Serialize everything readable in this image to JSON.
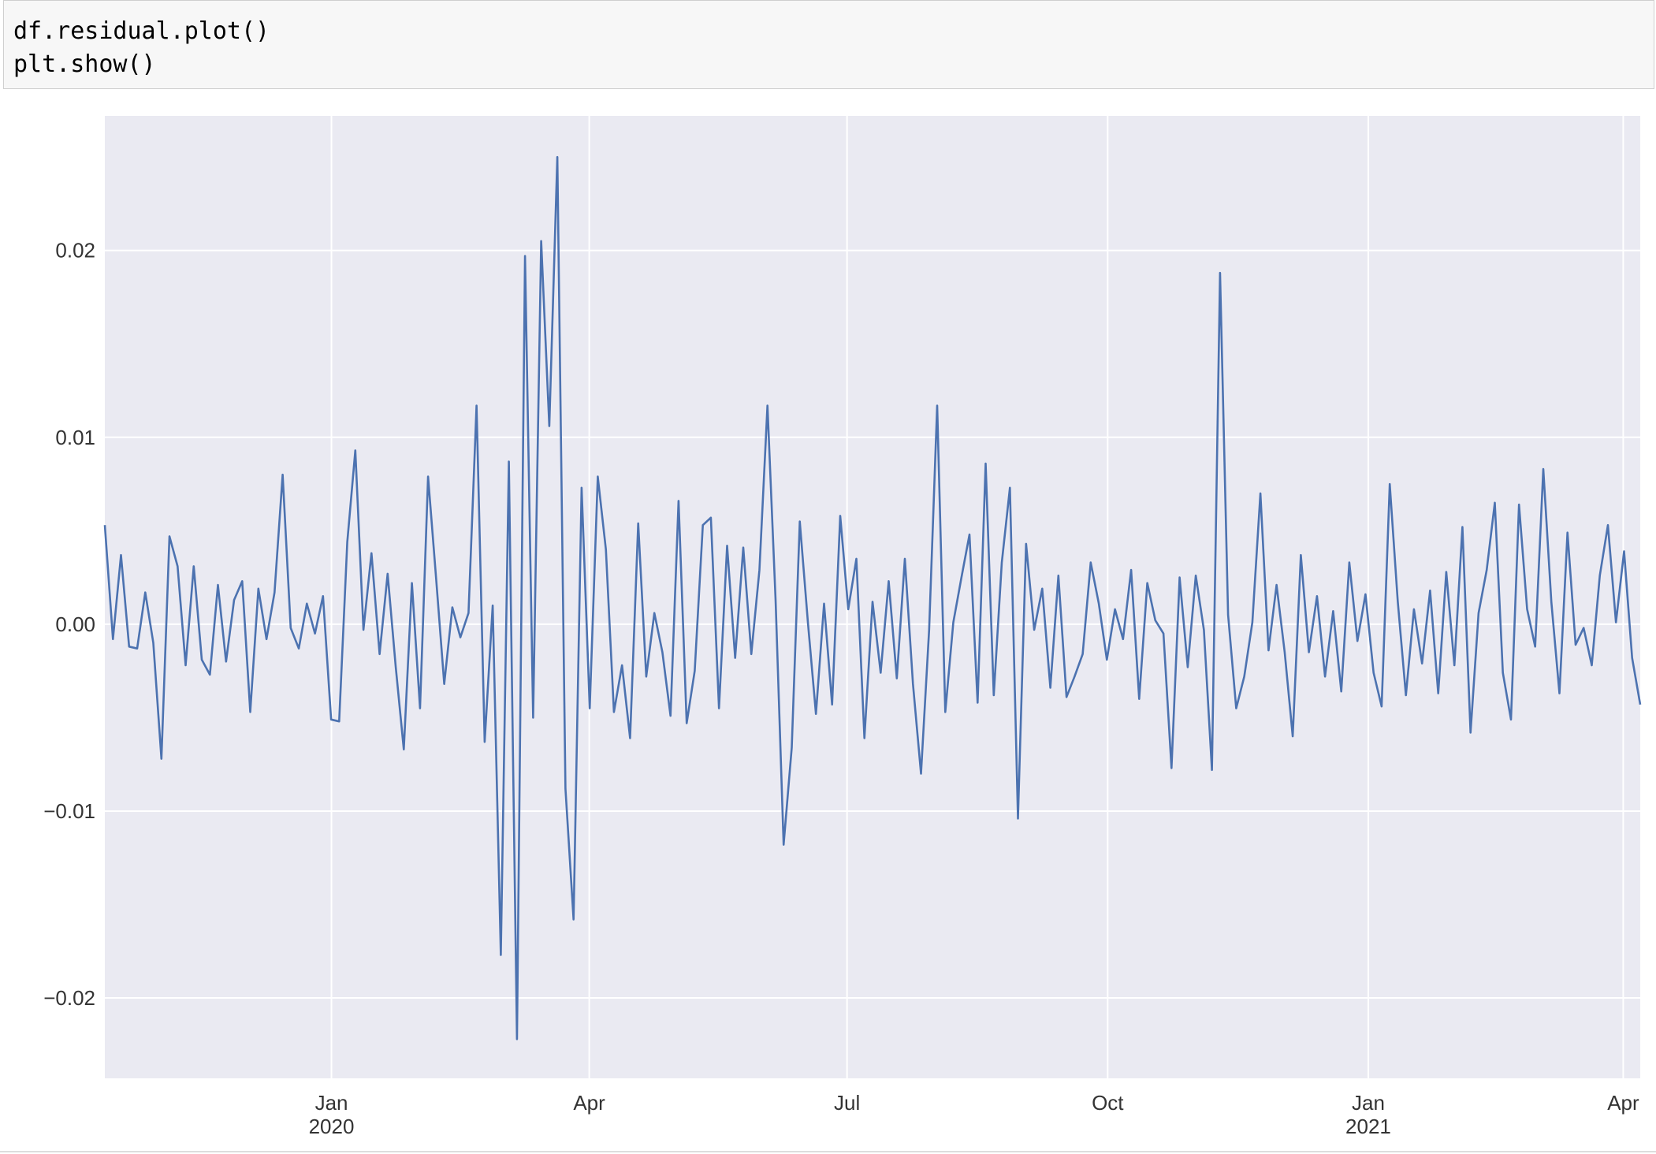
{
  "code": [
    "df.residual.plot()",
    "plt.show()"
  ],
  "chart_data": {
    "type": "line",
    "color": "#4c72b0",
    "grid": true,
    "xlim": [
      "2019-10-13",
      "2021-04-07"
    ],
    "xticks": [
      {
        "value": "2020-01-01",
        "label": "Jan\n2020"
      },
      {
        "value": "2020-04-01",
        "label": "Apr"
      },
      {
        "value": "2020-07-01",
        "label": "Jul"
      },
      {
        "value": "2020-10-01",
        "label": "Oct"
      },
      {
        "value": "2021-01-01",
        "label": "Jan\n2021"
      },
      {
        "value": "2021-04-01",
        "label": "Apr"
      }
    ],
    "ylim": [
      -0.0243,
      0.0272
    ],
    "yticks": [
      {
        "value": -0.02,
        "label": "−0.02"
      },
      {
        "value": -0.01,
        "label": "−0.01"
      },
      {
        "value": 0,
        "label": "0.00"
      },
      0.01,
      0.02
    ],
    "values": [
      0.0053,
      -0.0008,
      0.0037,
      -0.0012,
      -0.0013,
      0.0017,
      -0.001,
      -0.0072,
      0.0047,
      0.0031,
      -0.0022,
      0.0031,
      -0.0019,
      -0.0027,
      0.0021,
      -0.002,
      0.0013,
      0.0023,
      -0.0047,
      0.0019,
      -0.0008,
      0.0017,
      0.008,
      -0.0002,
      -0.0013,
      0.0011,
      -0.0005,
      0.0015,
      -0.0051,
      -0.0052,
      0.0044,
      0.0093,
      -0.0003,
      0.0038,
      -0.0016,
      0.0027,
      -0.0023,
      -0.0067,
      0.0022,
      -0.0045,
      0.0079,
      0.0024,
      -0.0032,
      0.0009,
      -0.0007,
      0.0006,
      0.0117,
      -0.0063,
      0.001,
      -0.0177,
      0.0087,
      -0.0222,
      0.0197,
      -0.005,
      0.0205,
      0.0106,
      0.025,
      -0.0088,
      -0.0158,
      0.0073,
      -0.0045,
      0.0079,
      0.004,
      -0.0047,
      -0.0022,
      -0.0061,
      0.0054,
      -0.0028,
      0.0006,
      -0.0015,
      -0.0049,
      0.0066,
      -0.0053,
      -0.0025,
      0.0053,
      0.0057,
      -0.0045,
      0.0042,
      -0.0018,
      0.0041,
      -0.0016,
      0.0029,
      0.0117,
      0.0013,
      -0.0118,
      -0.0066,
      0.0055,
      0.0001,
      -0.0048,
      0.0011,
      -0.0043,
      0.0058,
      0.0008,
      0.0035,
      -0.0061,
      0.0012,
      -0.0026,
      0.0023,
      -0.0029,
      0.0035,
      -0.0032,
      -0.008,
      -0.0003,
      0.0117,
      -0.0047,
      0.0001,
      0.0025,
      0.0048,
      -0.0042,
      0.0086,
      -0.0038,
      0.0033,
      0.0073,
      -0.0104,
      0.0043,
      -0.0003,
      0.0019,
      -0.0034,
      0.0026,
      -0.0039,
      -0.0028,
      -0.0016,
      0.0033,
      0.0011,
      -0.0019,
      0.0008,
      -0.0008,
      0.0029,
      -0.004,
      0.0022,
      0.0002,
      -0.0005,
      -0.0077,
      0.0025,
      -0.0023,
      0.0026,
      -0.0003,
      -0.0078,
      0.0188,
      0.0005,
      -0.0045,
      -0.0028,
      0.0001,
      0.007,
      -0.0014,
      0.0021,
      -0.0015,
      -0.006,
      0.0037,
      -0.0015,
      0.0015,
      -0.0028,
      0.0007,
      -0.0036,
      0.0033,
      -0.0009,
      0.0016,
      -0.0026,
      -0.0044,
      0.0075,
      0.0012,
      -0.0038,
      0.0008,
      -0.0021,
      0.0018,
      -0.0037,
      0.0028,
      -0.0022,
      0.0052,
      -0.0058,
      0.0006,
      0.0029,
      0.0065,
      -0.0026,
      -0.0051,
      0.0064,
      0.0008,
      -0.0012,
      0.0083,
      0.0012,
      -0.0037,
      0.0049,
      -0.0011,
      -0.0002,
      -0.0022,
      0.0026,
      0.0053,
      0.0001,
      0.0039,
      -0.0018,
      -0.0043
    ]
  }
}
